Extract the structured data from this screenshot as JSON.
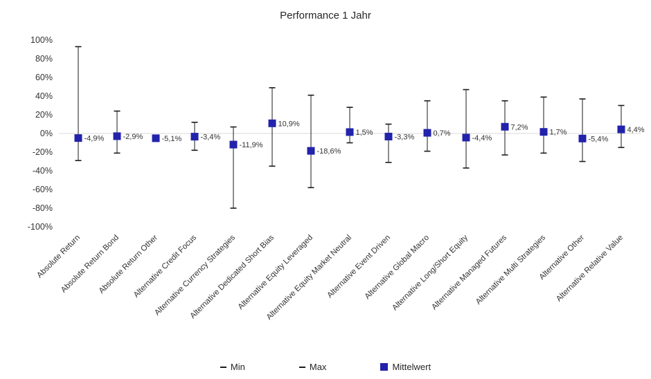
{
  "title": "Performance 1 Jahr",
  "legend": {
    "min": "Min",
    "max": "Max",
    "mean": "Mittelwert"
  },
  "colors": {
    "marker": "#2222ac",
    "whisker": "#1a1a1a",
    "zero_line": "#d9d9d9",
    "text": "#333333"
  },
  "chart_data": {
    "type": "range",
    "title": "Performance 1 Jahr",
    "ylim": [
      -100,
      100
    ],
    "ytick_step": 20,
    "yticks": [
      100,
      80,
      60,
      40,
      20,
      0,
      -20,
      -40,
      -60,
      -80,
      -100
    ],
    "ytick_labels": [
      "100%",
      "80%",
      "60%",
      "40%",
      "20%",
      "0%",
      "-20%",
      "-40%",
      "-60%",
      "-80%",
      "-100%"
    ],
    "grid": "zero-line-only",
    "legend_position": "bottom",
    "categories": [
      "Absolute Return",
      "Absolute Return Bond",
      "Absolute Return Other",
      "Alternative Credit Focus",
      "Alternative Currency Strategies",
      "Alternative Dedicated Short Bias",
      "Alternative Equity Leveraged",
      "Alternative Equity Market Neutral",
      "Alternative Event Driven",
      "Alternative Global Macro",
      "Alternative Long/Short Equity",
      "Alternative Managed Futures",
      "Alternative Multi Strategies",
      "Alternative Other",
      "Alternative Relative Value"
    ],
    "series": [
      {
        "name": "Min",
        "values": [
          -29,
          -21,
          -5.1,
          -18,
          -80,
          -35,
          -58,
          -10,
          -31,
          -19,
          -37,
          -23,
          -21,
          -30,
          -15
        ]
      },
      {
        "name": "Max",
        "values": [
          93,
          24,
          -5.1,
          12,
          7,
          49,
          41,
          28,
          10,
          35,
          47,
          35,
          39,
          37,
          30
        ]
      },
      {
        "name": "Mittelwert",
        "values": [
          -4.9,
          -2.9,
          -5.1,
          -3.4,
          -11.9,
          10.9,
          -18.6,
          1.5,
          -3.3,
          0.7,
          -4.4,
          7.2,
          1.7,
          -5.4,
          4.4
        ]
      }
    ],
    "mean_labels": [
      "-4,9%",
      "-2,9%",
      "-5,1%",
      "-3,4%",
      "-11,9%",
      "10,9%",
      "-18,6%",
      "1,5%",
      "-3,3%",
      "0,7%",
      "-4,4%",
      "7,2%",
      "1,7%",
      "-5,4%",
      "4,4%"
    ]
  }
}
